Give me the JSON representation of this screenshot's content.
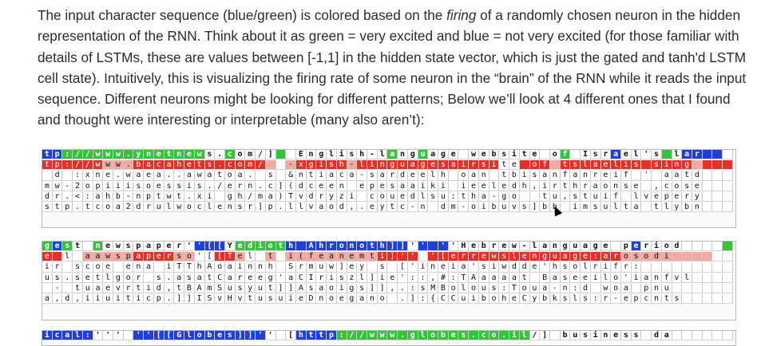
{
  "paragraph": {
    "part1": "The input character sequence (blue/green) is colored based on the ",
    "emphasis": "firing",
    "part2": " of a randomly chosen neuron in the hidden representation of the RNN. Think about it as green = very excited and blue = not very excited (for those familiar with details of LSTMs, these are values between [-1,1] in the hidden state vector, which is just the gated and tanh'd LSTM cell state). Intuitively, this is visualizing the firing rate of some neuron in the “brain” of the RNN while it reads the input sequence. Different neurons might be looking for different patterns; Below we’ll look at 4 different ones that I found and thought were interesting or interpretable (many also aren’t):"
  },
  "colors": {
    "text": "#2b2b2b",
    "blue": "#1f3fd6",
    "green": "#36c23a",
    "red": "#e8302a",
    "pink": "#f4a9a2",
    "white": "#ffffff"
  },
  "grids": [
    {
      "header": "tp://www.ynetnews.com/]  English-language website of Israel's lar",
      "header_levels": "BBGGGGGGGGGGGGGGWWGWWWWGWWWWWWWWWWGWWGWWWWWWWWWWWWWGWWWWBWWWWGWBBBB",
      "rows": [
        {
          "text": "tp://www.bacahets.com/  -xgish-linguagesairsite of tslaelis sing",
          "levels": "RRRRRRPPPRRRRRRRRRRRRRPWPRRRRRPRRRRRRRRRRRRRRWWRRRPRRRRRRRRRRRRRPRRR"
        },
        {
          "text": " d :xne.waea..awatoa. s &ntiaca-sardeelh oan tbisanfanreif ' aatd",
          "levels": "WWWWWWWWWWWWWWWWWWWWWWWWWWWWWWWWWWWWWWWWWWWWWWWWWWWWWWWWWWWWWWWWWW"
        },
        {
          "text": "mw-2opiiisoessis./ern.c](dceen epesaaiki ieeledh,irthraonse ,cose",
          "levels": "WWWWWWWWWWWWWWWWWWWWWWWWWWWWWWWWWWWWWWWWWWWWWWWWWWWWWWWWWWWWWWWWWW"
        },
        {
          "text": "dr.<:ahb-nptwt.xi gh/ma)Tvdryzi couedlsu:tha-go  tu,stuif lvepery",
          "levels": "WWWWWWWWWWWWWWWWWWWWWWWWWWWWWWWWWWWWWWWWWWWWWWWWWWWWWWWWWWWWWWWWWW"
        },
        {
          "text": "stp.tcoa2drulwoclensr]p.llvaod,.eytc-n dm-oibuvs]bb imsulta tlybn",
          "levels": "WWWWWWWWWWWWWWWWWWWWWWWWWWWWWWWWWWWWWWWWWWWWWWWWWWWWWWWWWWWWWWWWWW"
        }
      ]
    },
    {
      "header": "gest newspaper''[[Yedioth Ahronoth]]'' ''Hebrew-language period",
      "header_levels": "GBGWWGWWWWWWWWWBBBWGGGGGBBBBBBBBBBBBWBBBWWWWWWWWWWWWWWWWWWBWWWWWWWWG",
      "rows": [
        {
          "text": "e l aawspaperso'[[Tel t i(feanemti]'' '[errewslenguage:arosodi",
          "levels": "RRWWPPPPPRRRRPPWWRRPWWPWPPPPPPPPPRRRRWRRRRRRRRRRRRRRRRRRRPPPPPPPPP"
        },
        {
          "text": "ir scoe ena iTThAoainnh Srmuw]ey s ['ineia'siwdde'hsolrifr:",
          "levels": "WWWWWWWWWWWWWWWWWWWWWWWWWWWWWWWWWWWWWWWWWWWWWWWWWWWWWWWWWWWWWWWWWW"
        },
        {
          "text": "us.setlgor s.asatCareeg'aCIriszl]ie'::,#:TAaaaat Baseeilo'ianfvl",
          "levels": "WWWWWWWWWWWWWWWWWWWWWWWWWWWWWWWWWWWWWWWWWWWWWWWWWWWWWWWWWWWWWWWWWW"
        },
        {
          "text": " - tuaevrtid,tBAmSusyut]]Asaoigs]],.:sMBolous:Toua-n:d woa pnu",
          "levels": "WWWWWWWWWWWWWWWWWWWWWWWWWWWWWWWWWWWWWWWWWWWWWWWWWWWWWWWWWWWWWWWWWW"
        },
        {
          "text": "a,d,iiuiticp.]]ISvHvtusuieDnoegano .]:{CCuiboheCybksls:r-epcnts",
          "levels": "WWWWWWWWWWWWWWWWWWWWWWWWWWWWWWWWWWWWWWWWWWWWWWWWWWWWWWWWWWWWWWWWWW"
        }
      ]
    },
    {
      "header": "ical:''' ''[[Globes]]'' [http://www.globes.co.il/] business da",
      "header_levels": "BBBBBWWWWBBBBBBBBBBBBBWWWBBBBGGGGGGGGGGGGGGGGGGGWWWWWWWWWWWWWWWWWW",
      "rows": []
    }
  ]
}
